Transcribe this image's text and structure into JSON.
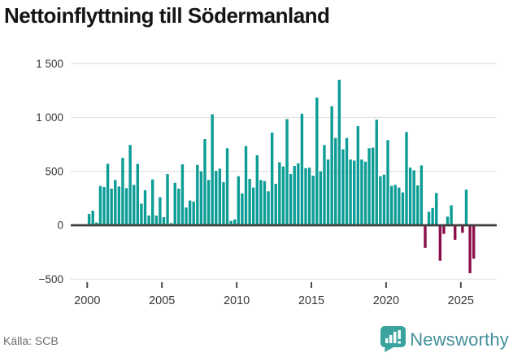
{
  "title": "Nettoinflyttning till Södermanland",
  "source": "Källa: SCB",
  "brand": {
    "name": "Newsworthy",
    "icon": "newsworthy-speech-bubble-bars-icon",
    "icon_color": "#3aa39d",
    "text_color": "#45919b"
  },
  "chart_data": {
    "type": "bar",
    "title": "Nettoinflyttning till Södermanland",
    "frequency": "quarterly",
    "start_year": 2000,
    "start_quarter": 1,
    "x_tick_labels": [
      "2000",
      "2005",
      "2010",
      "2015",
      "2020",
      "2025"
    ],
    "x_tick_years": [
      2000,
      2005,
      2010,
      2015,
      2020,
      2025
    ],
    "y_tick_labels": [
      "1 500",
      "1 000",
      "500",
      "0",
      "−500"
    ],
    "y_ticks": [
      1500,
      1000,
      500,
      0,
      -500
    ],
    "ylim": [
      -500,
      1500
    ],
    "grid": true,
    "positive_color": "#0d9d96",
    "negative_color": "#8c0f4c",
    "zero_line_color": "#3f3f3f",
    "grid_color": "#e3e3e3",
    "values": [
      105,
      135,
      25,
      365,
      355,
      570,
      340,
      420,
      360,
      625,
      345,
      745,
      375,
      570,
      200,
      325,
      90,
      425,
      90,
      260,
      75,
      475,
      20,
      395,
      340,
      565,
      165,
      230,
      220,
      560,
      500,
      800,
      420,
      1030,
      505,
      525,
      400,
      715,
      40,
      55,
      455,
      295,
      735,
      430,
      350,
      650,
      420,
      410,
      315,
      860,
      385,
      585,
      545,
      985,
      475,
      550,
      575,
      1035,
      530,
      535,
      460,
      1185,
      500,
      745,
      610,
      1105,
      810,
      1350,
      705,
      810,
      610,
      600,
      920,
      610,
      590,
      715,
      720,
      980,
      455,
      470,
      790,
      365,
      375,
      350,
      305,
      865,
      535,
      510,
      370,
      555,
      -210,
      125,
      160,
      300,
      -330,
      -80,
      80,
      185,
      -135,
      0,
      -70,
      330,
      -445,
      -310
    ]
  }
}
